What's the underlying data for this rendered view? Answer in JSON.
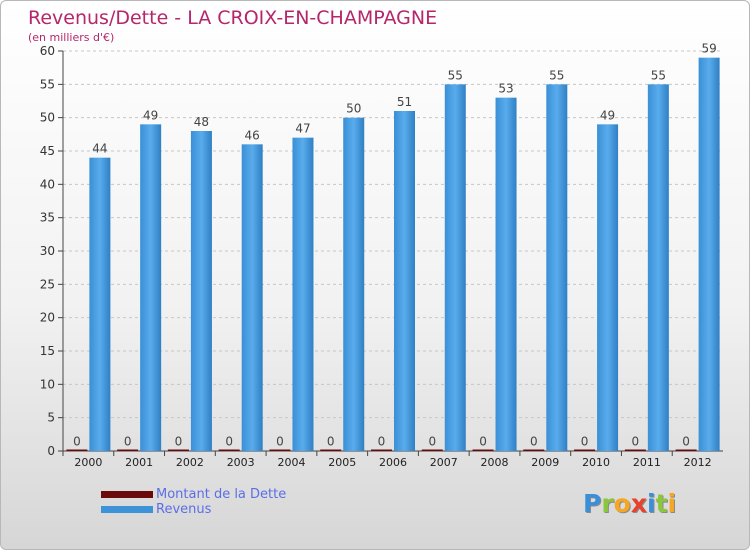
{
  "colors": {
    "title": "#b5266b",
    "legend_text": "#5b6ee6",
    "debt": "#6b0a0a",
    "revenue": "#3d93d8"
  },
  "chart_data": {
    "type": "bar",
    "title": "Revenus/Dette - LA CROIX-EN-CHAMPAGNE",
    "subtitle": "(en milliers d'€)",
    "xlabel": "",
    "ylabel": "",
    "ylim": [
      0,
      60
    ],
    "yticks": [
      0,
      5,
      10,
      15,
      20,
      25,
      30,
      35,
      40,
      45,
      50,
      55,
      60
    ],
    "grid": true,
    "legend_position": "bottom-left",
    "categories": [
      "2000",
      "2001",
      "2002",
      "2003",
      "2004",
      "2005",
      "2006",
      "2007",
      "2008",
      "2009",
      "2010",
      "2011",
      "2012"
    ],
    "series": [
      {
        "name": "Montant de la Dette",
        "color": "#6b0a0a",
        "values": [
          0,
          0,
          0,
          0,
          0,
          0,
          0,
          0,
          0,
          0,
          0,
          0,
          0
        ]
      },
      {
        "name": "Revenus",
        "color": "#3d93d8",
        "values": [
          44,
          49,
          48,
          46,
          47,
          50,
          51,
          55,
          53,
          55,
          49,
          55,
          59
        ]
      }
    ]
  },
  "logo": {
    "letters": [
      "P",
      "r",
      "o",
      "x",
      "i",
      "t",
      "i"
    ]
  }
}
